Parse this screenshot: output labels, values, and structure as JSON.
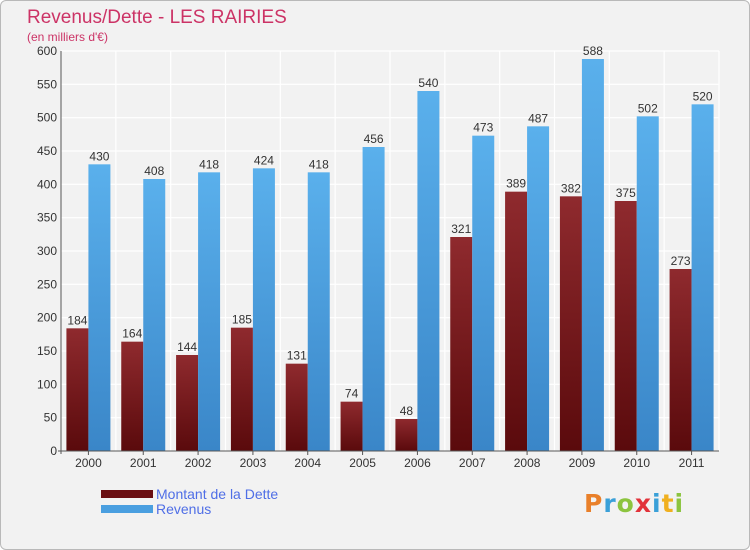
{
  "chart_data": {
    "type": "bar",
    "title": "Revenus/Dette - LES RAIRIES",
    "subtitle": "(en milliers d'€)",
    "categories": [
      "2000",
      "2001",
      "2002",
      "2003",
      "2004",
      "2005",
      "2006",
      "2007",
      "2008",
      "2009",
      "2010",
      "2011"
    ],
    "series": [
      {
        "name": "Montant de la Dette",
        "values": [
          184,
          164,
          144,
          185,
          131,
          74,
          48,
          321,
          389,
          382,
          375,
          273
        ],
        "color": "#7a1418"
      },
      {
        "name": "Revenus",
        "values": [
          430,
          408,
          418,
          424,
          418,
          456,
          540,
          473,
          487,
          588,
          502,
          520
        ],
        "color": "#4a9fe0"
      }
    ],
    "ylim": [
      0,
      600
    ],
    "yticks": [
      0,
      50,
      100,
      150,
      200,
      250,
      300,
      350,
      400,
      450,
      500,
      550,
      600
    ],
    "grid": true,
    "legend_position": "bottom-left"
  },
  "logo": {
    "text": "Proxiti",
    "letter_colors": [
      "#e9802a",
      "#3aa0d8",
      "#8cc43f",
      "#e2323a",
      "#3aa0d8",
      "#f0b020",
      "#8cc43f"
    ]
  }
}
